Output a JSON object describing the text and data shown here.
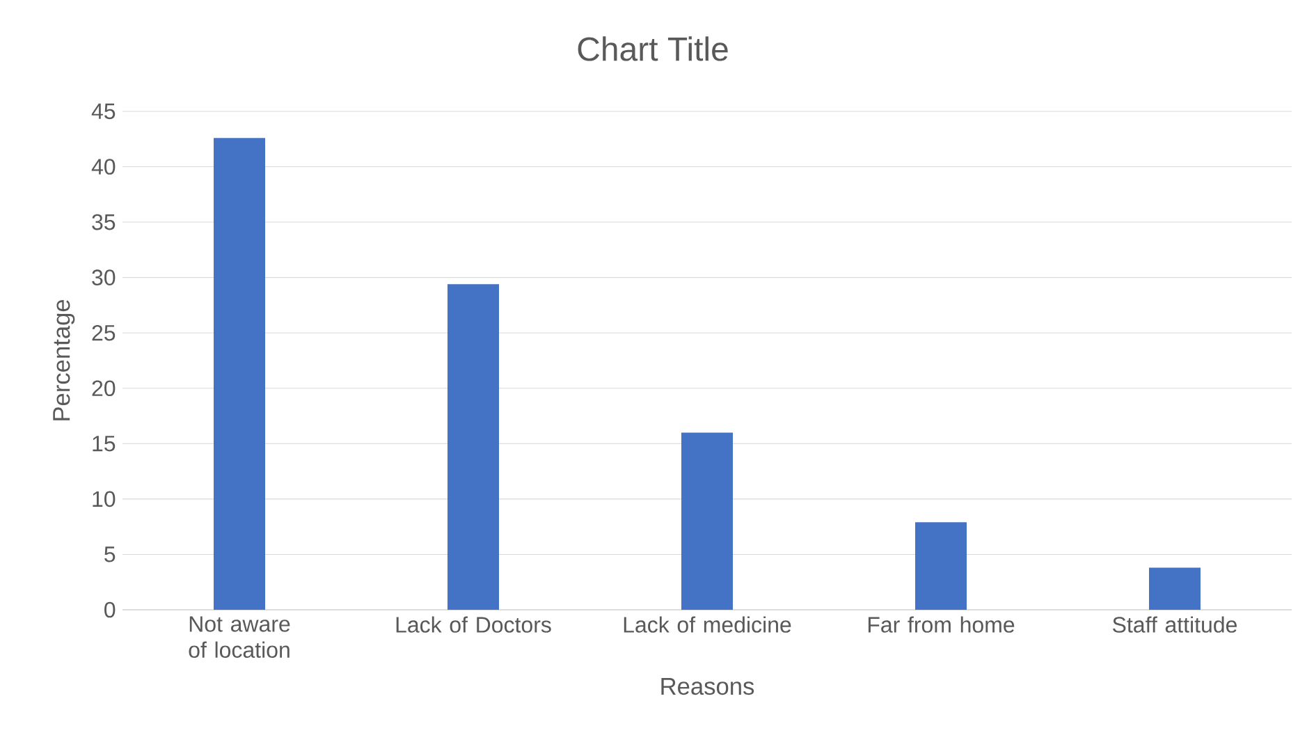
{
  "chart_data": {
    "type": "bar",
    "title": "Chart Title",
    "xlabel": "Reasons",
    "ylabel": "Percentage",
    "categories": [
      "Not aware of location",
      "Lack of Doctors",
      "Lack of medicine",
      "Far from home",
      "Staff attitude"
    ],
    "values": [
      42.6,
      29.4,
      16.0,
      7.9,
      3.8
    ],
    "color": "#4472c4",
    "ylim": [
      0,
      45
    ],
    "yticks": [
      0,
      5,
      10,
      15,
      20,
      25,
      30,
      35,
      40,
      45
    ],
    "grid": "y"
  }
}
